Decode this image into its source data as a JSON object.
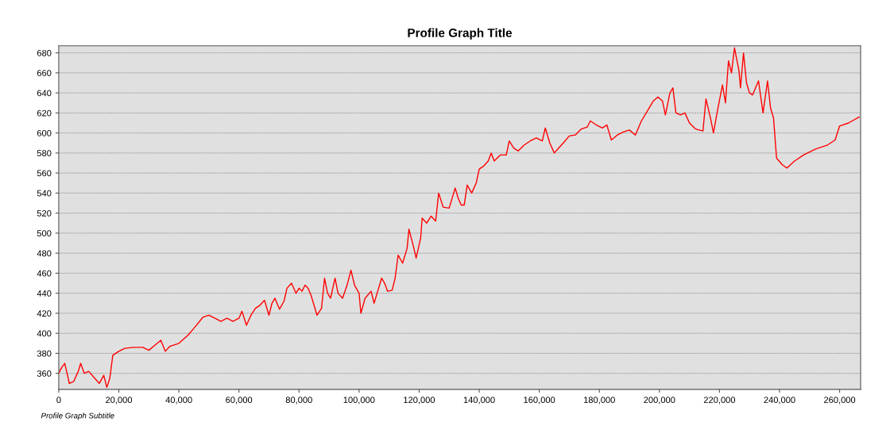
{
  "chart_data": {
    "type": "line",
    "title": "Profile Graph Title",
    "annotations": [
      "Profile Graph Subtitle"
    ],
    "xlim": [
      0,
      267000
    ],
    "ylim": [
      344,
      687
    ],
    "xticks": [
      {
        "value": 0,
        "label": "0"
      },
      {
        "value": 20000,
        "label": "20,000"
      },
      {
        "value": 40000,
        "label": "40,000"
      },
      {
        "value": 60000,
        "label": "60,000"
      },
      {
        "value": 80000,
        "label": "80,000"
      },
      {
        "value": 100000,
        "label": "100,000"
      },
      {
        "value": 120000,
        "label": "120,000"
      },
      {
        "value": 140000,
        "label": "140,000"
      },
      {
        "value": 160000,
        "label": "160,000"
      },
      {
        "value": 180000,
        "label": "180,000"
      },
      {
        "value": 200000,
        "label": "200,000"
      },
      {
        "value": 220000,
        "label": "220,000"
      },
      {
        "value": 240000,
        "label": "240,000"
      },
      {
        "value": 260000,
        "label": "260,000"
      }
    ],
    "yticks": [
      360,
      380,
      400,
      420,
      440,
      460,
      480,
      500,
      520,
      540,
      560,
      580,
      600,
      620,
      640,
      660,
      680
    ],
    "grid": "y",
    "marker": "none",
    "line_style": "solid",
    "series": [
      {
        "color": "#ff0000",
        "x": [
          0,
          1000,
          2000,
          3000,
          3500,
          5000,
          6500,
          7300,
          8500,
          10000,
          12000,
          13500,
          15000,
          16000,
          17000,
          18000,
          20000,
          22000,
          25000,
          28000,
          30000,
          32000,
          34000,
          35500,
          37000,
          40000,
          43000,
          45000,
          48000,
          50000,
          52000,
          54000,
          56000,
          58000,
          60000,
          61000,
          62500,
          64000,
          65500,
          67000,
          68500,
          70000,
          71000,
          72000,
          73500,
          75000,
          76000,
          77500,
          79000,
          80000,
          81000,
          82000,
          83000,
          84000,
          85000,
          86000,
          87500,
          88500,
          89500,
          90500,
          92000,
          93000,
          94500,
          96000,
          97300,
          98500,
          100000,
          100600,
          102000,
          104000,
          105000,
          106500,
          107500,
          108500,
          109500,
          111000,
          112000,
          113000,
          114500,
          116000,
          116600,
          118000,
          119000,
          120500,
          121000,
          122500,
          124000,
          125500,
          126500,
          128000,
          130000,
          132000,
          133000,
          134000,
          135000,
          136000,
          137500,
          139000,
          140000,
          141500,
          143000,
          144000,
          145000,
          147000,
          149000,
          150000,
          151500,
          153000,
          155000,
          157000,
          159000,
          161000,
          162000,
          163500,
          165000,
          166500,
          168000,
          170000,
          172000,
          174000,
          176000,
          177000,
          179000,
          181000,
          182500,
          184000,
          186000,
          188000,
          190000,
          192000,
          194000,
          196000,
          198000,
          199500,
          201000,
          202000,
          203500,
          204500,
          205500,
          207000,
          208500,
          210000,
          212000,
          214500,
          215500,
          217000,
          218000,
          219500,
          221000,
          222000,
          223000,
          224000,
          225000,
          226500,
          227000,
          228000,
          229000,
          230000,
          231000,
          233000,
          234500,
          236000,
          237000,
          238000,
          239000,
          241000,
          242500,
          245000,
          248000,
          252000,
          256000,
          258500,
          260000,
          263000,
          266500
        ],
        "values": [
          360,
          366,
          370,
          357,
          350,
          352,
          362,
          370,
          360,
          362,
          355,
          350,
          358,
          346,
          355,
          378,
          382,
          385,
          386,
          386,
          383,
          388,
          393,
          382,
          387,
          390,
          398,
          405,
          416,
          418,
          415,
          412,
          415,
          412,
          415,
          422,
          408,
          418,
          425,
          428,
          433,
          418,
          430,
          435,
          424,
          432,
          445,
          450,
          440,
          445,
          442,
          448,
          445,
          438,
          428,
          418,
          425,
          455,
          440,
          435,
          455,
          440,
          435,
          448,
          463,
          448,
          440,
          420,
          435,
          442,
          430,
          445,
          455,
          450,
          442,
          443,
          455,
          478,
          470,
          485,
          504,
          488,
          475,
          495,
          515,
          510,
          517,
          512,
          540,
          526,
          525,
          545,
          535,
          528,
          528,
          548,
          540,
          550,
          564,
          567,
          572,
          580,
          572,
          578,
          578,
          592,
          585,
          582,
          588,
          592,
          595,
          592,
          605,
          590,
          580,
          585,
          590,
          597,
          598,
          604,
          606,
          612,
          608,
          605,
          608,
          593,
          598,
          601,
          603,
          598,
          612,
          622,
          632,
          636,
          632,
          618,
          640,
          645,
          620,
          618,
          620,
          610,
          604,
          602,
          634,
          615,
          600,
          625,
          648,
          630,
          672,
          660,
          685,
          662,
          645,
          680,
          650,
          640,
          638,
          652,
          620,
          652,
          625,
          615,
          575,
          568,
          565,
          572,
          578,
          584,
          588,
          593,
          607,
          610,
          616
        ]
      }
    ]
  }
}
